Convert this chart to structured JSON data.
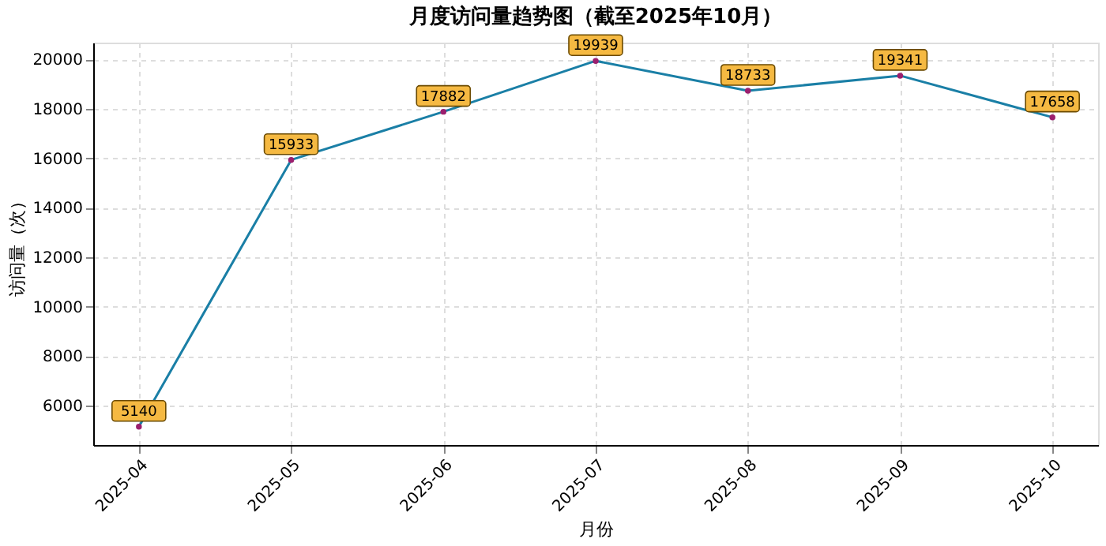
{
  "chart_data": {
    "type": "line",
    "title": "月度访问量趋势图（截至2025年10月）",
    "xlabel": "月份",
    "ylabel": "访问量（次）",
    "categories": [
      "2025-04",
      "2025-05",
      "2025-06",
      "2025-07",
      "2025-08",
      "2025-09",
      "2025-10"
    ],
    "series": [
      {
        "color": "#1a7fa6",
        "values": [
          5140,
          15933,
          17882,
          19939,
          18733,
          19341,
          17658
        ]
      }
    ],
    "marker": "circle",
    "data_labels": true,
    "ylim": [
      4400,
      20679
    ],
    "yticks": [
      6000,
      8000,
      10000,
      12000,
      14000,
      16000,
      18000,
      20000
    ],
    "grid": true,
    "line_style": "solid"
  }
}
